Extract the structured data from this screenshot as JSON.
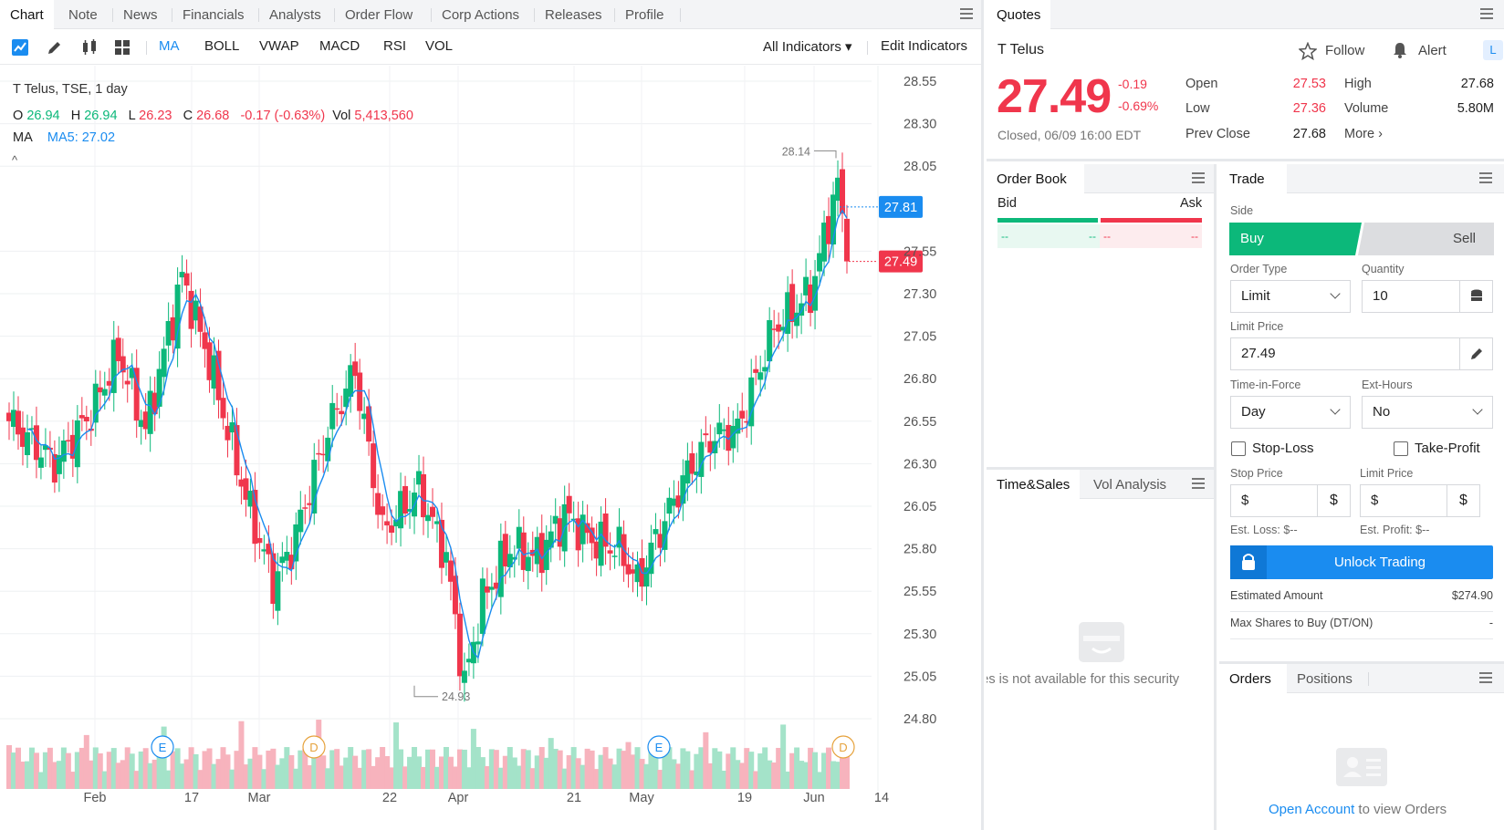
{
  "chart_panel": {
    "tabs": [
      "Chart",
      "Note",
      "News",
      "Financials",
      "Analysts",
      "Order Flow",
      "Corp Actions",
      "Releases",
      "Profile"
    ],
    "indicators": [
      "MA",
      "BOLL",
      "VWAP",
      "MACD",
      "RSI",
      "VOL"
    ],
    "all_indicators_label": "All Indicators ▾",
    "edit_indicators_label": "Edit Indicators",
    "legend": {
      "symbol_line": "T   Telus, TSE, 1 day",
      "o_label": "O",
      "o_value": "26.94",
      "h_label": "H",
      "h_value": "26.94",
      "l_label": "L",
      "l_value": "26.23",
      "c_label": "C",
      "c_value": "26.68",
      "change": "-0.17 (-0.63%)",
      "vol_label": "Vol",
      "vol_value": "5,413,560",
      "ma_label": "MA",
      "ma5": "MA5: 27.02",
      "collapse": "^"
    },
    "price_axis": [
      "28.55",
      "28.30",
      "28.05",
      "27.55",
      "27.30",
      "27.05",
      "26.80",
      "26.55",
      "26.30",
      "26.05",
      "25.80",
      "25.55",
      "25.30",
      "25.05",
      "24.80"
    ],
    "date_axis": [
      "Feb",
      "17",
      "Mar",
      "22",
      "Apr",
      "21",
      "May",
      "19",
      "Jun",
      "14"
    ],
    "ma_tag": "27.81",
    "price_tag": "27.49",
    "high_annotation": "28.14",
    "low_annotation": "24.93",
    "event_markers": [
      "E",
      "D",
      "E",
      "D"
    ],
    "colors": {
      "up": "#0cb87a",
      "down": "#f0364c",
      "ma": "#1a8cf0"
    }
  },
  "chart_data": {
    "type": "candlestick",
    "title": "",
    "xlabel": "",
    "ylabel": "",
    "ylim": [
      24.7,
      28.6
    ],
    "x_ticks": [
      "Feb",
      "17",
      "Mar",
      "22",
      "Apr",
      "21",
      "May",
      "19",
      "Jun",
      "14"
    ],
    "last_close": 27.49,
    "ma5_last": 27.81,
    "period_high": 28.14,
    "period_low": 24.93,
    "series": [
      {
        "name": "MA5",
        "values": []
      }
    ]
  },
  "quotes": {
    "tab": "Quotes",
    "symbol": "T",
    "name": "Telus",
    "follow": "Follow",
    "alert": "Alert",
    "price": "27.49",
    "change": "-0.19",
    "change_pct": "-0.69%",
    "status": "Closed, 06/09 16:00 EDT",
    "open_label": "Open",
    "open": "27.53",
    "high_label": "High",
    "high": "27.68",
    "low_label": "Low",
    "low": "27.36",
    "volume_label": "Volume",
    "volume": "5.80M",
    "prev_close_label": "Prev Close",
    "prev_close": "27.68",
    "more": "More ›"
  },
  "order_book": {
    "tab": "Order Book",
    "bid": "Bid",
    "ask": "Ask",
    "bid_price": "--",
    "bid_size": "--",
    "ask_price": "--",
    "ask_size": "--"
  },
  "time_sales": {
    "tabs": [
      "Time&Sales",
      "Vol Analysis"
    ],
    "message": "Time&Sales is not available for this security"
  },
  "trade": {
    "tab": "Trade",
    "side_label": "Side",
    "buy": "Buy",
    "sell": "Sell",
    "order_type_label": "Order Type",
    "order_type": "Limit",
    "quantity_label": "Quantity",
    "quantity": "10",
    "limit_price_label": "Limit Price",
    "limit_price": "27.49",
    "tif_label": "Time-in-Force",
    "tif": "Day",
    "ext_hours_label": "Ext-Hours",
    "ext_hours": "No",
    "stop_loss": "Stop-Loss",
    "take_profit": "Take-Profit",
    "stop_price_label": "Stop Price",
    "stop_price": "$",
    "tp_limit_price_label": "Limit Price",
    "tp_limit_price": "$",
    "est_loss": "Est. Loss: $--",
    "est_profit": "Est. Profit: $--",
    "unlock": "Unlock Trading",
    "estimated_amount_label": "Estimated Amount",
    "estimated_amount": "$274.90",
    "max_shares_label": "Max Shares to Buy (DT/ON)",
    "max_shares": "-"
  },
  "orders": {
    "tabs": [
      "Orders",
      "Positions"
    ],
    "open_account": "Open Account",
    "to_view": "to view Orders"
  }
}
